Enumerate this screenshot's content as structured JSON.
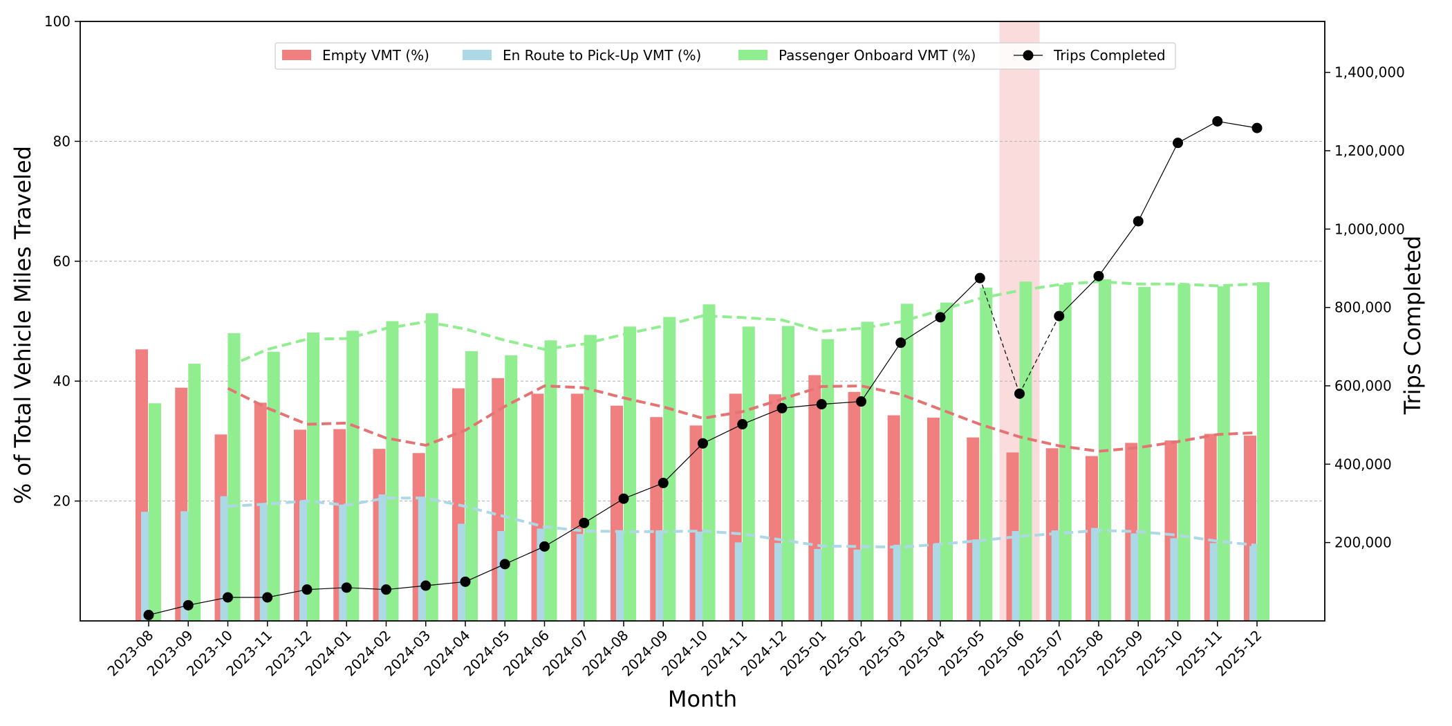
{
  "chart_data": {
    "type": "bar",
    "xlabel": "Month",
    "ylabel": "% of Total Vehicle Miles Traveled",
    "y2label": "Trips Completed",
    "ylim": [
      0,
      100
    ],
    "y2lim": [
      0,
      1530000
    ],
    "yticks": [
      20,
      40,
      60,
      80,
      100
    ],
    "y2ticks": [
      200000,
      400000,
      600000,
      800000,
      1000000,
      1200000,
      1400000
    ],
    "y2tick_labels": [
      "200,000",
      "400,000",
      "600,000",
      "800,000",
      "1,000,000",
      "1,200,000",
      "1,400,000"
    ],
    "grid": "horizontal dashed",
    "legend_position": "upper center",
    "highlight_category": "2025-06",
    "categories": [
      "2023-08",
      "2023-09",
      "2023-10",
      "2023-11",
      "2023-12",
      "2024-01",
      "2024-02",
      "2024-03",
      "2024-04",
      "2024-05",
      "2024-06",
      "2024-07",
      "2024-08",
      "2024-09",
      "2024-10",
      "2024-11",
      "2024-12",
      "2025-01",
      "2025-02",
      "2025-03",
      "2025-04",
      "2025-05",
      "2025-06",
      "2025-07",
      "2025-08",
      "2025-09",
      "2025-10",
      "2025-11",
      "2025-12"
    ],
    "series": [
      {
        "name": "Empty VMT (%)",
        "type": "bar",
        "color": "#f08080",
        "values": [
          45.3,
          38.9,
          31.1,
          36.4,
          31.9,
          32.0,
          28.7,
          28.0,
          38.8,
          40.5,
          37.9,
          37.9,
          35.9,
          34.0,
          32.6,
          37.9,
          37.8,
          41.0,
          38.2,
          34.3,
          33.9,
          30.6,
          28.1,
          28.8,
          27.5,
          29.7,
          30.1,
          31.2,
          30.9
        ]
      },
      {
        "name": "En Route to Pick-Up VMT (%)",
        "type": "bar",
        "color": "#add8e6",
        "values": [
          18.2,
          18.3,
          20.8,
          19.4,
          20.0,
          19.4,
          21.1,
          20.6,
          16.2,
          15.0,
          15.4,
          14.5,
          14.9,
          15.1,
          14.9,
          13.1,
          13.0,
          12.0,
          11.9,
          12.7,
          12.8,
          13.6,
          15.0,
          15.1,
          15.5,
          14.6,
          13.8,
          13.0,
          12.5
        ]
      },
      {
        "name": "Passenger Onboard VMT (%)",
        "type": "bar",
        "color": "#90ee90",
        "values": [
          36.3,
          42.9,
          48.0,
          44.9,
          48.1,
          48.4,
          50.0,
          51.3,
          45.0,
          44.3,
          46.8,
          47.7,
          49.1,
          50.7,
          52.8,
          49.1,
          49.2,
          47.0,
          49.9,
          52.9,
          53.1,
          55.6,
          56.6,
          56.1,
          57.0,
          55.7,
          56.2,
          55.8,
          56.5
        ]
      },
      {
        "name": "Trips Completed",
        "type": "line",
        "color": "#000000",
        "values": [
          15000,
          40000,
          60000,
          60000,
          80000,
          85000,
          80000,
          90000,
          100000,
          145000,
          190000,
          250000,
          312000,
          352000,
          453000,
          502000,
          543000,
          553000,
          560000,
          710000,
          775000,
          875000,
          580000,
          778000,
          880000,
          1020000,
          1220000,
          1275000,
          1258000
        ]
      }
    ],
    "trend_lines": [
      {
        "series": "Empty VMT (%)",
        "style": "dashed",
        "color": "#e57373",
        "values": [
          null,
          null,
          38.8,
          35.5,
          32.8,
          33.0,
          30.5,
          29.3,
          31.8,
          35.8,
          39.2,
          38.9,
          37.2,
          35.7,
          33.8,
          34.9,
          37.0,
          39.1,
          39.2,
          37.8,
          35.3,
          32.8,
          30.7,
          29.2,
          28.3,
          28.9,
          29.9,
          31.1,
          31.4
        ]
      },
      {
        "series": "En Route to Pick-Up VMT (%)",
        "style": "dashed",
        "color": "#add8e6",
        "values": [
          null,
          null,
          19.1,
          19.5,
          20.0,
          19.3,
          20.5,
          20.5,
          19.1,
          17.4,
          15.7,
          15.0,
          14.9,
          14.9,
          15.0,
          14.5,
          13.5,
          12.5,
          12.4,
          12.3,
          12.8,
          13.4,
          14.1,
          14.6,
          15.1,
          14.9,
          14.3,
          13.3,
          12.6
        ]
      },
      {
        "series": "Passenger Onboard VMT (%)",
        "style": "dashed",
        "color": "#90ee90",
        "values": [
          null,
          null,
          42.4,
          45.3,
          47.0,
          47.1,
          48.8,
          49.9,
          48.7,
          46.8,
          45.3,
          46.2,
          47.8,
          49.2,
          50.9,
          50.6,
          50.2,
          48.3,
          48.8,
          49.9,
          51.8,
          53.8,
          55.1,
          56.1,
          56.6,
          56.2,
          56.2,
          55.9,
          56.2
        ]
      }
    ]
  }
}
